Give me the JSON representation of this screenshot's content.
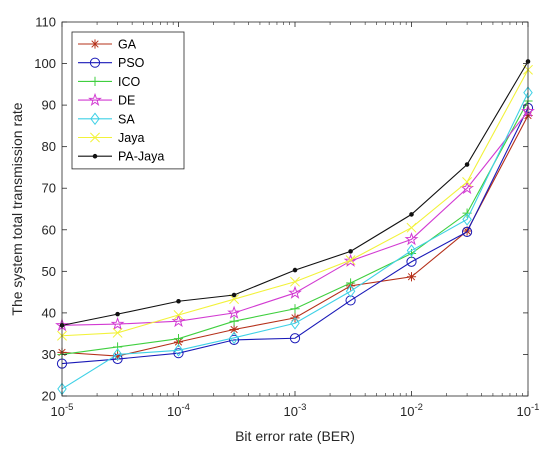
{
  "chart_data": {
    "type": "line",
    "xlabel": "Bit error rate (BER)",
    "ylabel": "The system total transmission rate",
    "xscale": "log",
    "xlim": [
      1e-05,
      0.1
    ],
    "ylim": [
      20,
      110
    ],
    "x": [
      1e-05,
      3e-05,
      0.0001,
      0.0003,
      0.001,
      0.003,
      0.01,
      0.03,
      0.1
    ],
    "x_ticks": [
      {
        "value": 1e-05,
        "base": "10",
        "exp": "-5"
      },
      {
        "value": 0.0001,
        "base": "10",
        "exp": "-4"
      },
      {
        "value": 0.001,
        "base": "10",
        "exp": "-3"
      },
      {
        "value": 0.01,
        "base": "10",
        "exp": "-2"
      },
      {
        "value": 0.1,
        "base": "10",
        "exp": "-1"
      }
    ],
    "y_ticks": [
      "20",
      "30",
      "40",
      "50",
      "60",
      "70",
      "80",
      "90",
      "100",
      "110"
    ],
    "grid": false,
    "legend_position": "top-left",
    "series": [
      {
        "name": "GA",
        "color": "#b5301a",
        "marker": "asterisk",
        "values": [
          30.5,
          29.6,
          33.0,
          36.0,
          38.8,
          46.5,
          48.7,
          59.7,
          87.5
        ]
      },
      {
        "name": "PSO",
        "color": "#1a1ab8",
        "marker": "circle",
        "values": [
          27.8,
          28.9,
          30.3,
          33.5,
          33.9,
          43.0,
          52.3,
          59.5,
          89.3
        ]
      },
      {
        "name": "ICO",
        "color": "#3fcf3f",
        "marker": "plus",
        "values": [
          30.0,
          31.8,
          33.8,
          38.0,
          41.0,
          47.2,
          54.3,
          64.0,
          91.0
        ]
      },
      {
        "name": "DE",
        "color": "#d23bd2",
        "marker": "star",
        "values": [
          37.0,
          37.3,
          38.0,
          40.0,
          44.8,
          52.5,
          57.7,
          70.0,
          88.5
        ]
      },
      {
        "name": "SA",
        "color": "#3fd1e6",
        "marker": "diamond",
        "values": [
          21.7,
          30.0,
          31.0,
          34.0,
          37.5,
          45.2,
          55.0,
          62.5,
          93.0
        ]
      },
      {
        "name": "Jaya",
        "color": "#f2f23a",
        "marker": "x",
        "values": [
          34.5,
          35.2,
          39.5,
          43.3,
          47.5,
          52.7,
          60.5,
          71.5,
          98.5
        ]
      },
      {
        "name": "PA-Jaya",
        "color": "#111111",
        "marker": "dot",
        "values": [
          37.0,
          39.7,
          42.8,
          44.3,
          50.3,
          54.8,
          63.7,
          75.7,
          100.5
        ]
      }
    ]
  }
}
